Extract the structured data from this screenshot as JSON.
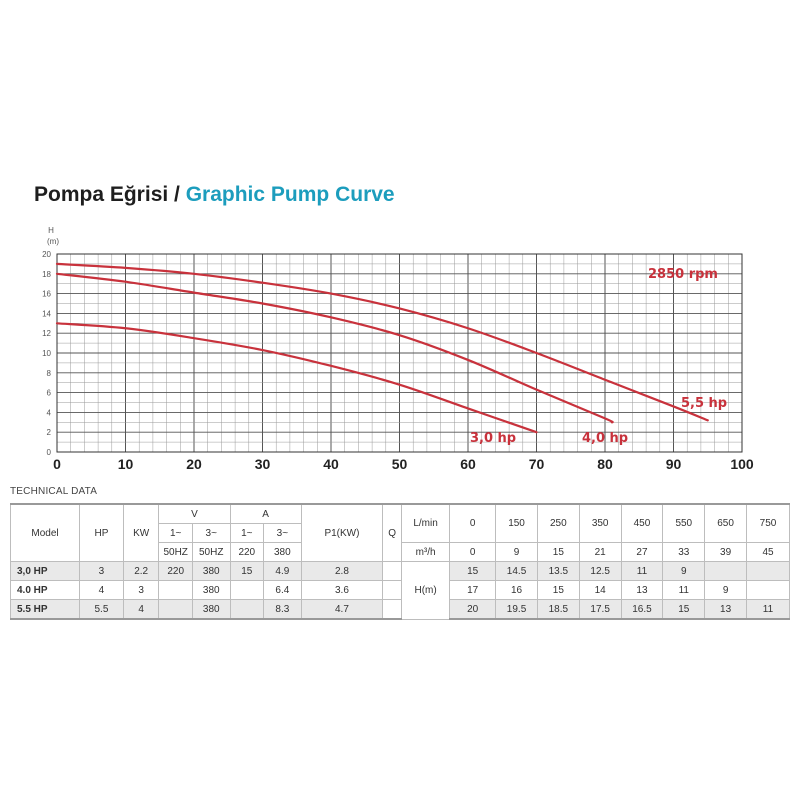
{
  "title": {
    "tr": "Pompa Eğrisi / ",
    "en": "Graphic Pump Curve"
  },
  "chart_data": {
    "type": "line",
    "ylabel": "H",
    "yunit": "(m)",
    "xlim": [
      0,
      100
    ],
    "ylim": [
      0,
      20
    ],
    "xticks": [
      0,
      10,
      20,
      30,
      40,
      50,
      60,
      70,
      80,
      90,
      100
    ],
    "yticks": [
      0,
      2,
      4,
      6,
      8,
      10,
      12,
      14,
      16,
      18,
      20
    ],
    "grid": true,
    "annotation": "2850 rpm",
    "series": [
      {
        "name": "3,0 hp",
        "color": "#c8323c",
        "x": [
          0,
          10,
          20,
          30,
          40,
          50,
          60,
          70
        ],
        "y": [
          13.0,
          12.5,
          11.5,
          10.3,
          8.7,
          6.8,
          4.4,
          2.0
        ]
      },
      {
        "name": "4,0 hp",
        "color": "#c8323c",
        "x": [
          0,
          10,
          20,
          30,
          40,
          50,
          60,
          70,
          80,
          81
        ],
        "y": [
          18.0,
          17.2,
          16.1,
          15.0,
          13.6,
          11.8,
          9.3,
          6.3,
          3.4,
          3.0
        ]
      },
      {
        "name": "5,5 hp",
        "color": "#c8323c",
        "x": [
          0,
          10,
          20,
          30,
          40,
          50,
          60,
          70,
          80,
          90,
          95
        ],
        "y": [
          19.0,
          18.6,
          18.0,
          17.1,
          16.0,
          14.5,
          12.5,
          10.0,
          7.3,
          4.6,
          3.2
        ]
      }
    ]
  },
  "tech": {
    "label": "TECHNICAL DATA",
    "h_model": "Model",
    "h_hp": "HP",
    "h_kw": "KW",
    "h_v": "V",
    "h_a": "A",
    "h_p1": "P1(KW)",
    "h_q": "Q",
    "v1": "1~",
    "v3": "3~",
    "a1": "1~",
    "a3": "3~",
    "v1hz": "50HZ",
    "v3hz": "50HZ",
    "a1v": "220",
    "a3v": "380",
    "lmin": "L/min",
    "m3h": "m³/h",
    "hm": "H(m)",
    "lmin_vals": [
      "0",
      "150",
      "250",
      "350",
      "450",
      "550",
      "650",
      "750"
    ],
    "m3h_vals": [
      "0",
      "9",
      "15",
      "21",
      "27",
      "33",
      "39",
      "45"
    ],
    "rows": [
      {
        "model": "3,0 HP",
        "hp": "3",
        "kw": "2.2",
        "v1": "220",
        "v3": "380",
        "a1": "15",
        "a3": "4.9",
        "p1": "2.8",
        "h": [
          "15",
          "14.5",
          "13.5",
          "12.5",
          "11",
          "9",
          "",
          ""
        ]
      },
      {
        "model": "4.0 HP",
        "hp": "4",
        "kw": "3",
        "v1": "",
        "v3": "380",
        "a1": "",
        "a3": "6.4",
        "p1": "3.6",
        "h": [
          "17",
          "16",
          "15",
          "14",
          "13",
          "11",
          "9",
          ""
        ]
      },
      {
        "model": "5.5 HP",
        "hp": "5.5",
        "kw": "4",
        "v1": "",
        "v3": "380",
        "a1": "",
        "a3": "8.3",
        "p1": "4.7",
        "h": [
          "20",
          "19.5",
          "18.5",
          "17.5",
          "16.5",
          "15",
          "13",
          "11"
        ]
      }
    ]
  }
}
